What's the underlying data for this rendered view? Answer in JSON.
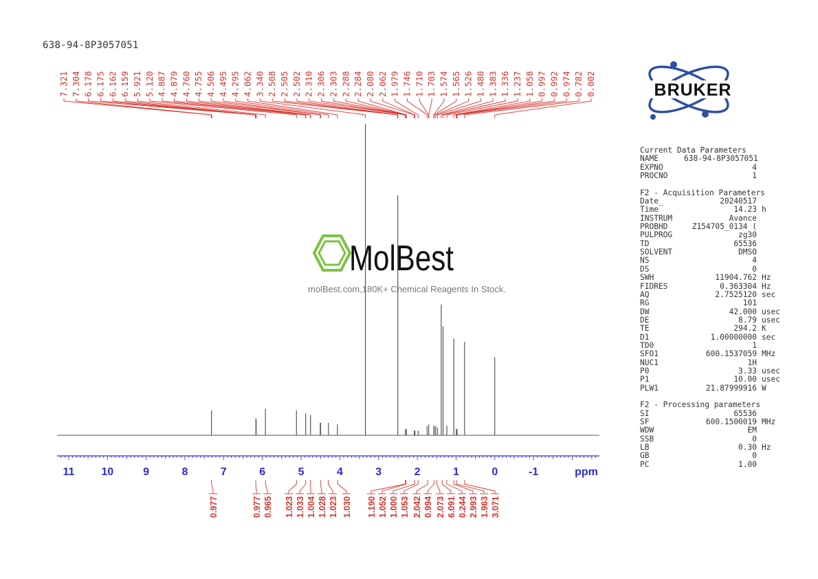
{
  "sample_name": "638-94-8P3057051",
  "watermark": {
    "brand": "MolBest",
    "tagline": "molBest.com,180K+ Chemical Reagents In Stock.",
    "brand_color": "#7cc242"
  },
  "logo": {
    "text": "BRUKER",
    "color": "#2f4fa0"
  },
  "colors": {
    "peak_labels": "#d9322c",
    "axis": "#2b2bd4",
    "spectrum": "#555555"
  },
  "chart_data": {
    "type": "line",
    "xlabel": "ppm",
    "xlim": [
      11.3,
      -2.7
    ],
    "x_ticks": [
      "11",
      "10",
      "9",
      "8",
      "7",
      "6",
      "5",
      "4",
      "3",
      "2",
      "1",
      "0",
      "-1"
    ],
    "peak_labels": [
      "7.321",
      "7.304",
      "6.178",
      "6.175",
      "6.162",
      "6.159",
      "5.921",
      "5.120",
      "4.887",
      "4.879",
      "4.760",
      "4.755",
      "4.506",
      "4.495",
      "4.295",
      "4.062",
      "3.340",
      "2.508",
      "2.505",
      "2.502",
      "2.310",
      "2.306",
      "2.303",
      "2.288",
      "2.284",
      "2.080",
      "2.062",
      "1.979",
      "1.746",
      "1.710",
      "1.703",
      "1.574",
      "1.565",
      "1.526",
      "1.480",
      "1.383",
      "1.336",
      "1.237",
      "1.058",
      "0.997",
      "0.992",
      "0.974",
      "0.782",
      "0.002"
    ],
    "peaks": [
      {
        "x": 7.313,
        "y": 0.08
      },
      {
        "x": 6.168,
        "y": 0.055
      },
      {
        "x": 6.16,
        "y": 0.05
      },
      {
        "x": 5.921,
        "y": 0.085
      },
      {
        "x": 5.12,
        "y": 0.08
      },
      {
        "x": 4.883,
        "y": 0.07
      },
      {
        "x": 4.757,
        "y": 0.065
      },
      {
        "x": 4.506,
        "y": 0.04
      },
      {
        "x": 4.495,
        "y": 0.04
      },
      {
        "x": 4.295,
        "y": 0.04
      },
      {
        "x": 4.062,
        "y": 0.035
      },
      {
        "x": 3.34,
        "y": 1.0
      },
      {
        "x": 2.505,
        "y": 0.77
      },
      {
        "x": 2.307,
        "y": 0.02
      },
      {
        "x": 2.286,
        "y": 0.02
      },
      {
        "x": 2.08,
        "y": 0.015
      },
      {
        "x": 2.062,
        "y": 0.015
      },
      {
        "x": 1.979,
        "y": 0.015
      },
      {
        "x": 1.746,
        "y": 0.03
      },
      {
        "x": 1.706,
        "y": 0.035
      },
      {
        "x": 1.574,
        "y": 0.03
      },
      {
        "x": 1.565,
        "y": 0.03
      },
      {
        "x": 1.526,
        "y": 0.03
      },
      {
        "x": 1.48,
        "y": 0.025
      },
      {
        "x": 1.383,
        "y": 0.42
      },
      {
        "x": 1.336,
        "y": 0.35
      },
      {
        "x": 1.237,
        "y": 0.03
      },
      {
        "x": 1.058,
        "y": 0.31
      },
      {
        "x": 0.995,
        "y": 0.02
      },
      {
        "x": 0.974,
        "y": 0.02
      },
      {
        "x": 0.782,
        "y": 0.3
      },
      {
        "x": 0.002,
        "y": 0.25
      }
    ],
    "integrals": [
      {
        "x": 7.31,
        "value": "0.977"
      },
      {
        "x": 6.17,
        "value": "0.977"
      },
      {
        "x": 5.92,
        "value": "0.965"
      },
      {
        "x": 5.12,
        "value": "1.023"
      },
      {
        "x": 4.88,
        "value": "1.033"
      },
      {
        "x": 4.76,
        "value": "1.004"
      },
      {
        "x": 4.5,
        "value": "1.028"
      },
      {
        "x": 4.3,
        "value": "1.023"
      },
      {
        "x": 4.06,
        "value": "1.030"
      },
      {
        "x": 2.31,
        "value": "1.190"
      },
      {
        "x": 2.29,
        "value": "1.052"
      },
      {
        "x": 2.07,
        "value": "1.000"
      },
      {
        "x": 1.98,
        "value": "1.053"
      },
      {
        "x": 1.73,
        "value": "2.042"
      },
      {
        "x": 1.57,
        "value": "0.994"
      },
      {
        "x": 1.5,
        "value": "2.073"
      },
      {
        "x": 1.36,
        "value": "6.091"
      },
      {
        "x": 1.24,
        "value": "0.244"
      },
      {
        "x": 1.06,
        "value": "2.993"
      },
      {
        "x": 0.99,
        "value": "1.963"
      },
      {
        "x": 0.78,
        "value": "3.071"
      }
    ]
  },
  "parameters": {
    "current": {
      "title": "Current Data Parameters",
      "rows": [
        {
          "name": "NAME",
          "value": "638-94-8P3057051",
          "unit": ""
        },
        {
          "name": "EXPNO",
          "value": "4",
          "unit": ""
        },
        {
          "name": "PROCNO",
          "value": "1",
          "unit": ""
        }
      ]
    },
    "acquisition": {
      "title": "F2 - Acquisition Parameters",
      "rows": [
        {
          "name": "Date_",
          "value": "20240517",
          "unit": ""
        },
        {
          "name": "Time",
          "value": "14.23",
          "unit": "h"
        },
        {
          "name": "INSTRUM",
          "value": "Avance",
          "unit": ""
        },
        {
          "name": "PROBHD",
          "value": "Z154705_0134 (",
          "unit": ""
        },
        {
          "name": "PULPROG",
          "value": "zg30",
          "unit": ""
        },
        {
          "name": "TD",
          "value": "65536",
          "unit": ""
        },
        {
          "name": "SOLVENT",
          "value": "DMSO",
          "unit": ""
        },
        {
          "name": "NS",
          "value": "4",
          "unit": ""
        },
        {
          "name": "DS",
          "value": "0",
          "unit": ""
        },
        {
          "name": "SWH",
          "value": "11904.762",
          "unit": "Hz"
        },
        {
          "name": "FIDRES",
          "value": "0.363304",
          "unit": "Hz"
        },
        {
          "name": "AQ",
          "value": "2.7525120",
          "unit": "sec"
        },
        {
          "name": "RG",
          "value": "101",
          "unit": ""
        },
        {
          "name": "DW",
          "value": "42.000",
          "unit": "usec"
        },
        {
          "name": "DE",
          "value": "8.79",
          "unit": "usec"
        },
        {
          "name": "TE",
          "value": "294.2",
          "unit": "K"
        },
        {
          "name": "D1",
          "value": "1.00000000",
          "unit": "sec"
        },
        {
          "name": "TD0",
          "value": "1",
          "unit": ""
        },
        {
          "name": "SFO1",
          "value": "600.1537059",
          "unit": "MHz"
        },
        {
          "name": "NUC1",
          "value": "1H",
          "unit": ""
        },
        {
          "name": "P0",
          "value": "3.33",
          "unit": "usec"
        },
        {
          "name": "P1",
          "value": "10.00",
          "unit": "usec"
        },
        {
          "name": "PLW1",
          "value": "21.87999916",
          "unit": "W"
        }
      ]
    },
    "processing": {
      "title": "F2 - Processing parameters",
      "rows": [
        {
          "name": "SI",
          "value": "65536",
          "unit": ""
        },
        {
          "name": "SF",
          "value": "600.1500019",
          "unit": "MHz"
        },
        {
          "name": "WDW",
          "value": "EM",
          "unit": ""
        },
        {
          "name": "SSB",
          "value": "0",
          "unit": ""
        },
        {
          "name": "LB",
          "value": "0.30",
          "unit": "Hz"
        },
        {
          "name": "GB",
          "value": "0",
          "unit": ""
        },
        {
          "name": "PC",
          "value": "1.00",
          "unit": ""
        }
      ]
    }
  }
}
